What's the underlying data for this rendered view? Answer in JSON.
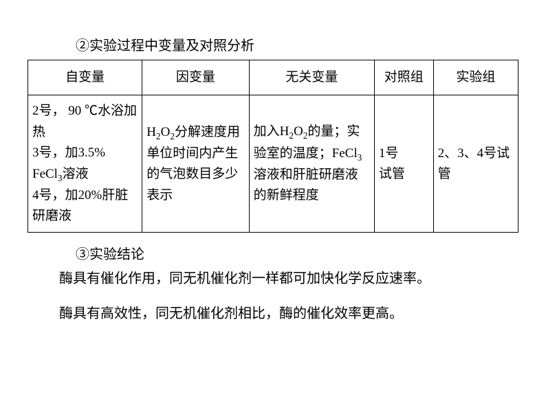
{
  "section2": {
    "title": "②实验过程中变量及对照分析"
  },
  "table": {
    "headers": {
      "col1": "自变量",
      "col2": "因变量",
      "col3": "无关变量",
      "col4": "对照组",
      "col5": "实验组"
    },
    "row": {
      "col1_line1": "2号， 90 ℃水浴加热",
      "col1_line2": "3号，加3.5% FeCl",
      "col1_sub1": "3",
      "col1_line2b": "溶液",
      "col1_line3": "4号，加20%肝脏研磨液",
      "col2_line1": "H",
      "col2_sub1": "2",
      "col2_line1b": "O",
      "col2_sub2": "2",
      "col2_line1c": "分解速度用单位时间内产生的气泡数目多少表示",
      "col3_line1": "加入H",
      "col3_sub1": "2",
      "col3_line1b": "O",
      "col3_sub2": "2",
      "col3_line1c": "的量；实验室的温度；FeCl",
      "col3_sub3": "3",
      "col3_line1d": "溶液和肝脏研磨液的新鲜程度",
      "col4": "1号",
      "col4b": "试管",
      "col5": "2、3、4号试管"
    }
  },
  "section3": {
    "title": "③实验结论",
    "text1": "酶具有催化作用，同无机催化剂一样都可加快化学反应速率。",
    "text2": "酶具有高效性，同无机催化剂相比，酶的催化效率更高。"
  }
}
